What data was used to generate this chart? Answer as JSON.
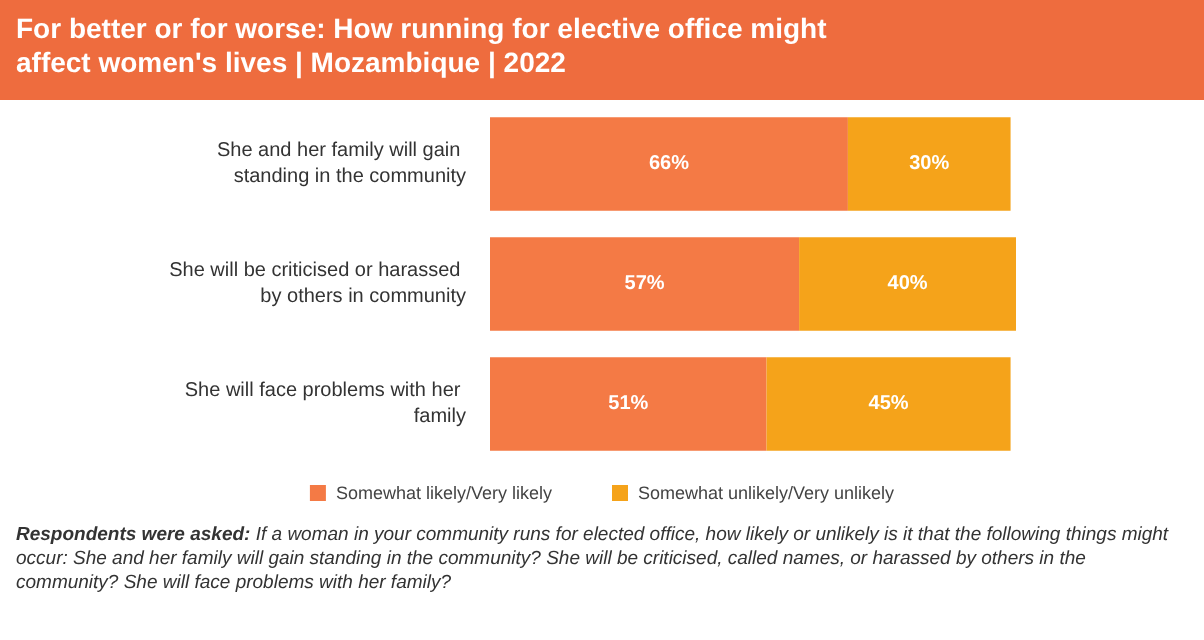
{
  "chart_data": {
    "type": "bar",
    "orientation": "horizontal",
    "stacked": true,
    "legend": "bottom",
    "title": "For better or for worse: How running for elective office might affect women's lives | Mozambique | 2022",
    "categories": [
      "She and her family will gain standing in the community",
      "She will be criticised or harassed by others in community",
      "She will face problems with her family"
    ],
    "series": [
      {
        "name": "Somewhat likely/Very likely",
        "color": "#f47a45",
        "values": [
          66,
          57,
          51
        ],
        "value_labels": [
          "66%",
          "57%",
          "51%"
        ]
      },
      {
        "name": "Somewhat unlikely/Very unlikely",
        "color": "#f5a31a",
        "values": [
          30,
          40,
          45
        ],
        "value_labels": [
          "30%",
          "40%",
          "45%"
        ]
      }
    ],
    "annotations": [
      "Respondents were asked: If a woman in your community runs for elected office, how likely or unlikely is it that the following things might occur: She and her family will gain standing in the community? She will be criticised, called names, or harassed by others in the community? She will face problems with her family?"
    ]
  }
}
